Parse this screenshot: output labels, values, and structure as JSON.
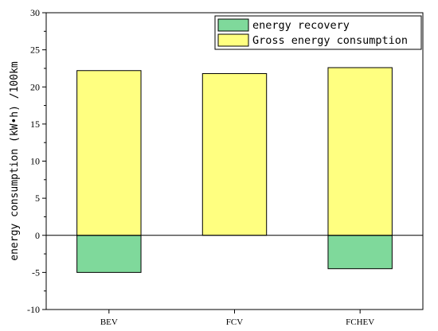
{
  "chart_data": {
    "type": "bar",
    "stacked": true,
    "categories": [
      "BEV",
      "FCV",
      "FCHEV"
    ],
    "series": [
      {
        "name": "energy recovery",
        "values": [
          -5.0,
          0,
          -4.5
        ],
        "color": "#7fd99b"
      },
      {
        "name": "Gross energy consumption",
        "values": [
          22.2,
          21.8,
          22.6
        ],
        "color": "#ffff80"
      }
    ],
    "ylabel": "energy consumption (kW•h) /100km",
    "xlabel": "",
    "title": "",
    "ylim": [
      -10,
      30
    ],
    "yticks": [
      "-10",
      "-5",
      "0",
      "5",
      "10",
      "15",
      "20",
      "25",
      "30"
    ],
    "zero_line": true,
    "grid": false,
    "legend_position": "top-right"
  }
}
